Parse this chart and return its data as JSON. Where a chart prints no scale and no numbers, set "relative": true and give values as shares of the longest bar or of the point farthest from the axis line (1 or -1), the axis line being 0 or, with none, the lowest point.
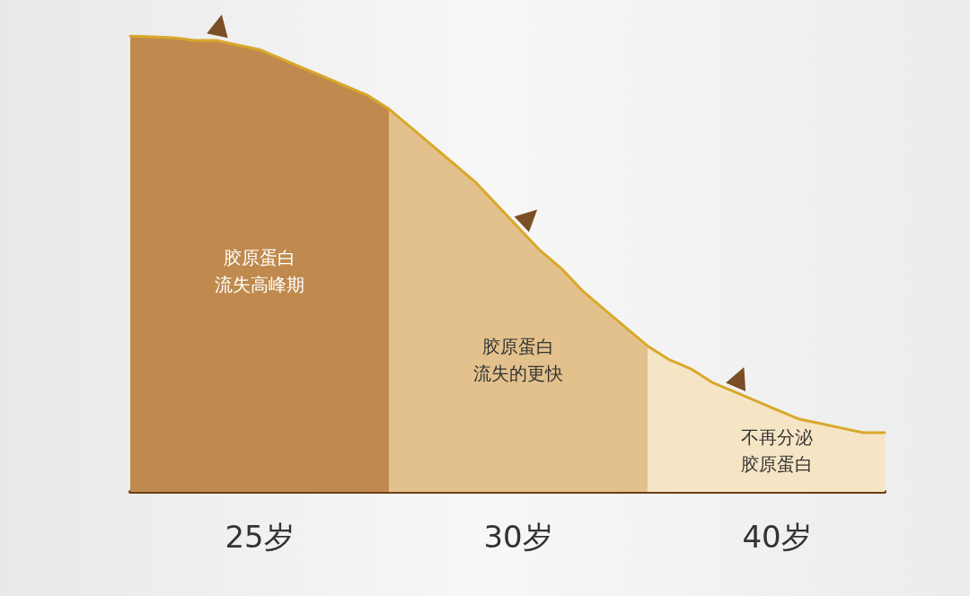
{
  "chart_data": {
    "type": "area",
    "relative": true,
    "categories": [
      null,
      null,
      null,
      null,
      null,
      null,
      null,
      null,
      null,
      null,
      null,
      null,
      null,
      null,
      null,
      null,
      null,
      null,
      null,
      null,
      null,
      null,
      null,
      null,
      null,
      null,
      null,
      null,
      null,
      null,
      null,
      null,
      null,
      null,
      null,
      null
    ],
    "series": [
      {
        "name": "25岁",
        "color": "#c08a4e",
        "values": [
          1,
          0.998,
          0.996,
          0.99,
          0.99,
          0.98,
          0.97,
          0.95,
          0.93,
          0.91,
          0.89,
          0.87,
          0.84,
          null,
          null,
          null,
          null,
          null,
          null,
          null,
          null,
          null,
          null,
          null,
          null,
          null,
          null,
          null,
          null,
          null,
          null,
          null,
          null,
          null,
          null,
          null
        ]
      },
      {
        "name": "30岁",
        "color": "#e3c18c",
        "values": [
          null,
          null,
          null,
          null,
          null,
          null,
          null,
          null,
          null,
          null,
          null,
          null,
          0.84,
          0.8,
          0.76,
          0.72,
          0.68,
          0.63,
          0.58,
          0.53,
          0.49,
          0.44,
          0.4,
          0.36,
          0.32,
          null,
          null,
          null,
          null,
          null,
          null,
          null,
          null,
          null,
          null,
          null
        ]
      },
      {
        "name": "40岁",
        "color": "#f6e5c4",
        "values": [
          null,
          null,
          null,
          null,
          null,
          null,
          null,
          null,
          null,
          null,
          null,
          null,
          null,
          null,
          null,
          null,
          null,
          null,
          null,
          null,
          null,
          null,
          null,
          null,
          0.32,
          0.29,
          0.27,
          0.24,
          0.22,
          0.2,
          0.18,
          0.16,
          0.15,
          0.14,
          0.13,
          0.13
        ]
      },
      {
        "type": "line",
        "color": "#d9a82a",
        "values": [
          1,
          0.998,
          0.996,
          0.99,
          0.99,
          0.98,
          0.97,
          0.95,
          0.93,
          0.91,
          0.89,
          0.87,
          0.84,
          0.8,
          0.76,
          0.72,
          0.68,
          0.63,
          0.58,
          0.53,
          0.49,
          0.44,
          0.4,
          0.36,
          0.32,
          0.29,
          0.27,
          0.24,
          0.22,
          0.2,
          0.18,
          0.16,
          0.15,
          0.14,
          0.13,
          0.13
        ]
      }
    ],
    "annotations": [
      "胶原蛋白流失高峰期",
      "胶原蛋白流失的更快",
      "不再分泌胶原蛋白"
    ]
  }
}
